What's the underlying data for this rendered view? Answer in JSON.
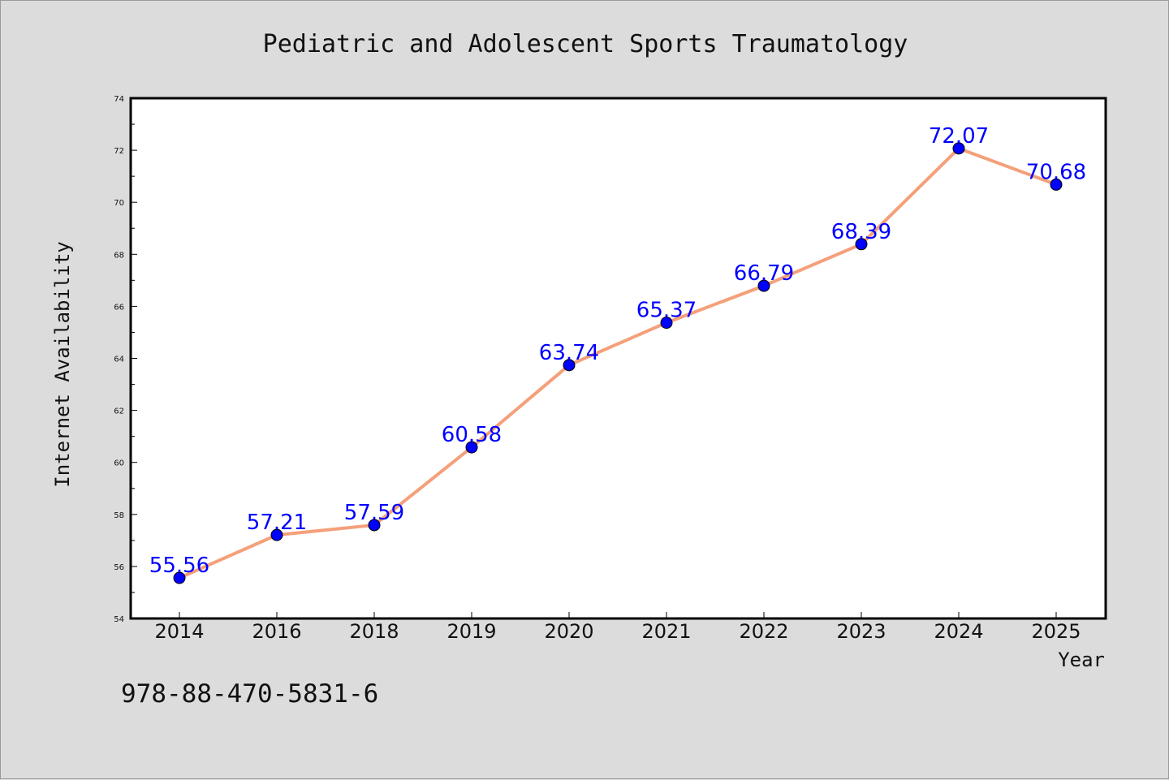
{
  "chart_data": {
    "type": "line",
    "title": "Pediatric and Adolescent Sports Traumatology",
    "xlabel": "Year",
    "ylabel": "Internet Availability",
    "categories": [
      "2014",
      "2016",
      "2018",
      "2019",
      "2020",
      "2021",
      "2022",
      "2023",
      "2024",
      "2025"
    ],
    "values": [
      55.56,
      57.21,
      57.59,
      60.58,
      63.74,
      65.37,
      66.79,
      68.39,
      72.07,
      70.68
    ],
    "data_labels": [
      "55.56",
      "57.21",
      "57.59",
      "60.58",
      "63.74",
      "65.37",
      "66.79",
      "68.39",
      "72.07",
      "70.68"
    ],
    "ylim": [
      54,
      74
    ],
    "yticks": [
      "54",
      "56",
      "58",
      "60",
      "62",
      "64",
      "66",
      "68",
      "70",
      "72",
      "74"
    ],
    "grid": false,
    "line_color": "#f4a07a",
    "marker_color": "#0000ff",
    "label_color": "#0000ff"
  },
  "footer_text": "978-88-470-5831-6"
}
